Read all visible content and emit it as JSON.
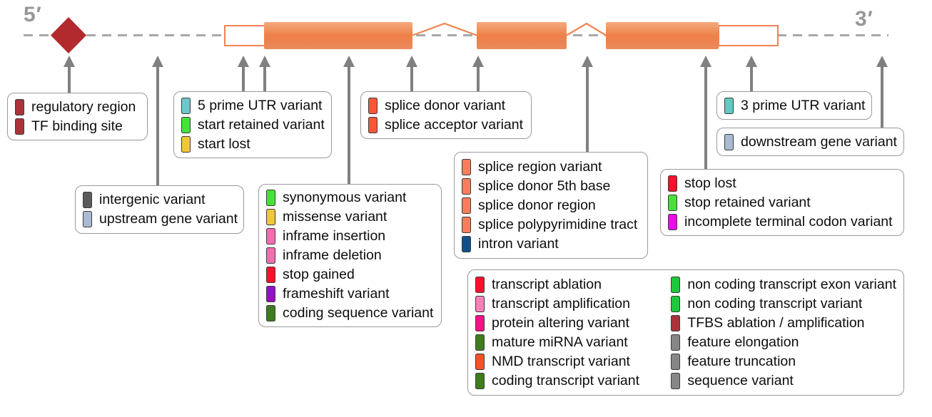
{
  "strand_labels": {
    "five_prime": "5′",
    "three_prime": "3′"
  },
  "gene_track": {
    "backbone_color": "#a8a8a8",
    "exon_top_color": "#f4aa7e",
    "exon_mid_color": "#ee8048",
    "exon_bottom_color": "#ea8c5e",
    "utr_outline_color": "#ef8552",
    "regulatory_diamond_color": "#b22a2d",
    "arrow_color": "#808080"
  },
  "legend_boxes": {
    "regulatory": {
      "items": [
        {
          "label": "regulatory region",
          "color": "#a93338"
        },
        {
          "label": "TF binding site",
          "color": "#a93338"
        }
      ]
    },
    "intergenic": {
      "items": [
        {
          "label": "intergenic variant",
          "color": "#5b5b5b"
        },
        {
          "label": "upstream gene variant",
          "color": "#a9bad2"
        }
      ]
    },
    "five_prime": {
      "items": [
        {
          "label": "5 prime UTR variant",
          "color": "#6ec7cb"
        },
        {
          "label": "start retained variant",
          "color": "#46e23a"
        },
        {
          "label": "start lost",
          "color": "#f0c63c"
        }
      ]
    },
    "coding": {
      "items": [
        {
          "label": "synonymous variant",
          "color": "#46e23a"
        },
        {
          "label": "missense variant",
          "color": "#f0c63c"
        },
        {
          "label": "inframe insertion",
          "color": "#f66cb0"
        },
        {
          "label": "inframe deletion",
          "color": "#f66cb0"
        },
        {
          "label": "stop gained",
          "color": "#fa102c"
        },
        {
          "label": "frameshift variant",
          "color": "#9610ca"
        },
        {
          "label": "coding sequence variant",
          "color": "#3e7c1e"
        }
      ]
    },
    "splice_sites": {
      "items": [
        {
          "label": "splice donor variant",
          "color": "#f55838"
        },
        {
          "label": "splice acceptor variant",
          "color": "#f55838"
        }
      ]
    },
    "splice_region": {
      "items": [
        {
          "label": "splice region variant",
          "color": "#f67e5c"
        },
        {
          "label": "splice donor 5th base",
          "color": "#f67e5c"
        },
        {
          "label": "splice donor region",
          "color": "#f67e5c"
        },
        {
          "label": "splice polypyrimidine tract",
          "color": "#f67e5c"
        },
        {
          "label": "intron variant",
          "color": "#12508c"
        }
      ]
    },
    "terminal": {
      "items": [
        {
          "label": "stop lost",
          "color": "#fa102c"
        },
        {
          "label": "stop retained variant",
          "color": "#46e23a"
        },
        {
          "label": "incomplete terminal codon variant",
          "color": "#ee0cea"
        }
      ]
    },
    "three_prime": {
      "items": [
        {
          "label": "3 prime UTR variant",
          "color": "#63c8bf"
        }
      ]
    },
    "downstream": {
      "items": [
        {
          "label": "downstream gene variant",
          "color": "#a9bad2"
        }
      ]
    },
    "general_left": {
      "items": [
        {
          "label": "transcript ablation",
          "color": "#fa102c"
        },
        {
          "label": "transcript amplification",
          "color": "#f282ba"
        },
        {
          "label": "protein altering variant",
          "color": "#f41288"
        },
        {
          "label": "mature miRNA variant",
          "color": "#3e7c1e"
        },
        {
          "label": "NMD transcript variant",
          "color": "#f65226"
        },
        {
          "label": "coding transcript variant",
          "color": "#3e7c1e"
        }
      ]
    },
    "general_right": {
      "items": [
        {
          "label": "non coding transcript exon variant",
          "color": "#1cc83c"
        },
        {
          "label": "non coding transcript variant",
          "color": "#1cc83c"
        },
        {
          "label": "TFBS ablation / amplification",
          "color": "#a93338"
        },
        {
          "label": "feature elongation",
          "color": "#868686"
        },
        {
          "label": "feature truncation",
          "color": "#868686"
        },
        {
          "label": "sequence variant",
          "color": "#868686"
        }
      ]
    }
  }
}
